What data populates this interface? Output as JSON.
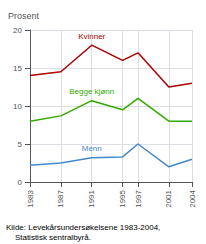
{
  "chart_data": {
    "type": "line",
    "ylabel": "Prosent",
    "annotations": [
      "Kilde: Levekårsundersøkelsene 1983-2004,\n    Statistisk sentralbyrå."
    ],
    "x": [
      1983,
      1987,
      1991,
      1995,
      1997,
      2001,
      2004
    ],
    "series": [
      {
        "name": "Kvinner",
        "color": "#aa0000",
        "values": [
          14.0,
          14.5,
          18.0,
          16.0,
          17.0,
          12.5,
          13.0
        ]
      },
      {
        "name": "Begge kjønn",
        "color": "#33aa00",
        "values": [
          8.0,
          8.7,
          10.7,
          9.5,
          11.0,
          8.0,
          8.0
        ]
      },
      {
        "name": "Menn",
        "color": "#4488cc",
        "values": [
          2.2,
          2.5,
          3.2,
          3.3,
          5.0,
          2.0,
          3.0
        ]
      }
    ],
    "xlim": [
      1983,
      2004
    ],
    "xticks": [
      1983,
      1987,
      1991,
      1995,
      1997,
      2001,
      2004
    ],
    "ylim": [
      0,
      20
    ],
    "yticks": [
      0,
      5,
      10,
      15,
      20
    ],
    "grid": true
  }
}
